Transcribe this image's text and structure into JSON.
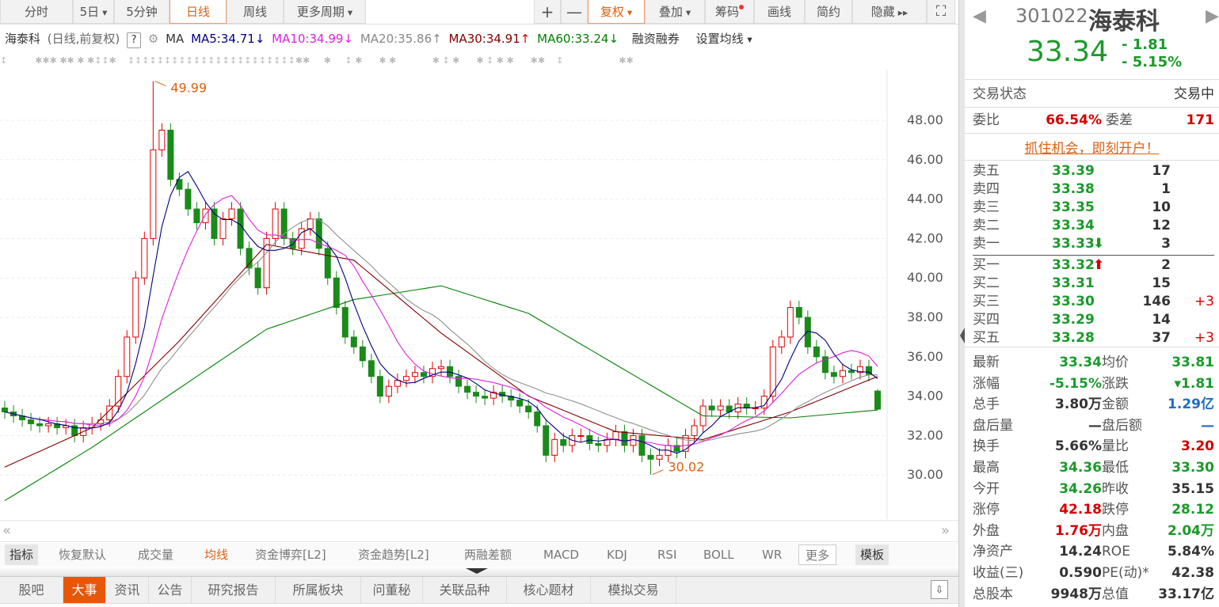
{
  "toolbar": {
    "periods": [
      "分时",
      "5日",
      "5分钟",
      "日线",
      "周线",
      "更多周期"
    ],
    "active_period": "日线",
    "right": [
      "+",
      "—",
      "复权",
      "叠加",
      "筹码",
      "画线",
      "简约",
      "隐藏"
    ],
    "fullscreen_icon": "expand-icon"
  },
  "legend": {
    "name": "海泰科",
    "mode": "(日线,前复权)",
    "help": "?",
    "ma_label": "MA",
    "ma5": "MA5:34.71",
    "ma5_arrow": "↓",
    "ma10": "MA10:34.99",
    "ma10_arrow": "↓",
    "ma20": "MA20:35.86",
    "ma20_arrow": "↑",
    "ma30": "MA30:34.91",
    "ma30_arrow": "↑",
    "ma60": "MA60:33.24",
    "ma60_arrow": "↓",
    "margin": "融资融券",
    "set_ma": "设置均线"
  },
  "colors": {
    "up": "#e00000",
    "down": "#1a8a1a",
    "ma5": "#000080",
    "ma10": "#e020e0",
    "ma20": "#909090",
    "ma30": "#800000",
    "ma60": "#008000",
    "accent": "#e8560a"
  },
  "chart_data": {
    "type": "candlestick",
    "ylim": [
      27.8,
      51.5
    ],
    "yticks": [
      "48.00",
      "46.00",
      "44.00",
      "42.00",
      "40.00",
      "38.00",
      "36.00",
      "34.00",
      "32.00",
      "30.00"
    ],
    "close": [
      33.2,
      33.0,
      32.8,
      32.6,
      32.5,
      32.6,
      32.4,
      32.5,
      32.0,
      32.4,
      32.6,
      32.8,
      33.5,
      35.0,
      37.0,
      40.0,
      42.0,
      46.5,
      47.5,
      45.0,
      44.5,
      43.5,
      42.8,
      43.5,
      42.0,
      43.0,
      43.5,
      41.5,
      40.5,
      39.5,
      42.0,
      43.5,
      42.0,
      41.5,
      42.5,
      43.0,
      41.5,
      40.0,
      38.5,
      37.0,
      36.5,
      35.8,
      35.0,
      34.0,
      34.5,
      34.8,
      35.0,
      35.2,
      35.0,
      35.4,
      35.5,
      35.0,
      34.5,
      34.2,
      34.0,
      33.9,
      34.2,
      34.0,
      33.8,
      33.5,
      33.2,
      32.5,
      31.0,
      31.8,
      31.5,
      32.0,
      32.0,
      31.6,
      31.5,
      31.8,
      32.2,
      31.5,
      32.0,
      31.0,
      30.8,
      31.0,
      31.5,
      31.2,
      32.0,
      32.5,
      33.5,
      33.3,
      33.5,
      33.2,
      33.6,
      33.4,
      33.4,
      34.0,
      36.5,
      37.0,
      38.5,
      38.0,
      36.5,
      36.0,
      35.2,
      35.0,
      35.3,
      35.2,
      35.5,
      35.1,
      33.34
    ],
    "last_candle": {
      "open": 34.26,
      "high": 34.36,
      "low": 33.3,
      "close": 33.34
    },
    "ma30_samples": [
      30.4,
      32.4,
      36.8,
      41.7,
      40.9,
      37.2,
      34.0,
      32.2,
      31.8,
      33.2,
      35.0
    ],
    "ma60_samples": [
      28.7,
      31.4,
      34.4,
      37.4,
      38.9,
      39.6,
      38.2,
      35.6,
      33.0,
      32.9,
      33.3
    ],
    "annotations": [
      {
        "label": "49.99",
        "value": 49.99,
        "index": 17
      },
      {
        "label": "30.02",
        "value": 30.02,
        "index": 74
      }
    ]
  },
  "markers_icon": "event-marker-icon",
  "indicators": {
    "label": "指标",
    "items": [
      "恢复默认",
      "成交量",
      "均线",
      "资金博弈[L2]",
      "资金趋势[L2]",
      "两融差额",
      "MACD",
      "KDJ",
      "RSI",
      "BOLL",
      "WR"
    ],
    "active": "均线",
    "more": "更多",
    "template": "模板"
  },
  "bottom_tabs": {
    "items": [
      "股吧",
      "大事",
      "资讯",
      "公告",
      "研究报告",
      "所属板块",
      "问董秘",
      "关联品种",
      "核心题材",
      "模拟交易"
    ],
    "active": "大事"
  },
  "quote": {
    "code": "301022",
    "name": "海泰科",
    "price": "33.34",
    "change": "- 1.81",
    "pct": "- 5.15%",
    "status_label": "交易状态",
    "status": "交易中",
    "wb_label": "委比",
    "wb": "66.54%",
    "wc_label": "委差",
    "wc": "171",
    "promo": "抓住机会，即刻开户！",
    "asks": [
      {
        "l": "卖五",
        "p": "33.39",
        "v": "17"
      },
      {
        "l": "卖四",
        "p": "33.38",
        "v": "1"
      },
      {
        "l": "卖三",
        "p": "33.35",
        "v": "10"
      },
      {
        "l": "卖二",
        "p": "33.34",
        "v": "12"
      },
      {
        "l": "卖一",
        "p": "33.33",
        "v": "3",
        "arrow": "⬇"
      }
    ],
    "bids": [
      {
        "l": "买一",
        "p": "33.32",
        "v": "2",
        "arrow": "⬆"
      },
      {
        "l": "买二",
        "p": "33.31",
        "v": "15"
      },
      {
        "l": "买三",
        "p": "33.30",
        "v": "146",
        "d": "+3"
      },
      {
        "l": "买四",
        "p": "33.29",
        "v": "14"
      },
      {
        "l": "买五",
        "p": "33.28",
        "v": "37",
        "d": "+3"
      }
    ],
    "stats": [
      [
        "最新",
        "33.34",
        "g",
        "均价",
        "33.81",
        "g"
      ],
      [
        "涨幅",
        "-5.15%",
        "g",
        "涨跌",
        "▾1.81",
        "g"
      ],
      [
        "总手",
        "3.80万",
        "d",
        "金额",
        "1.29亿",
        "b"
      ],
      [
        "盘后量",
        "—",
        "d",
        "盘后额",
        "—",
        "b"
      ],
      [
        "换手",
        "5.66%",
        "d",
        "量比",
        "3.20",
        "r"
      ],
      [
        "最高",
        "34.36",
        "g",
        "最低",
        "33.30",
        "g"
      ],
      [
        "今开",
        "34.26",
        "g",
        "昨收",
        "35.15",
        "d"
      ],
      [
        "涨停",
        "42.18",
        "r",
        "跌停",
        "28.12",
        "g"
      ],
      [
        "外盘",
        "1.76万",
        "r",
        "内盘",
        "2.04万",
        "g"
      ],
      [
        "净资产",
        "14.24",
        "d",
        "ROE",
        "5.84%",
        "d"
      ],
      [
        "收益(三)",
        "0.590",
        "d",
        "PE(动)*",
        "42.38",
        "d"
      ],
      [
        "总股本",
        "9948万",
        "d",
        "总值",
        "33.17亿",
        "d"
      ]
    ]
  }
}
